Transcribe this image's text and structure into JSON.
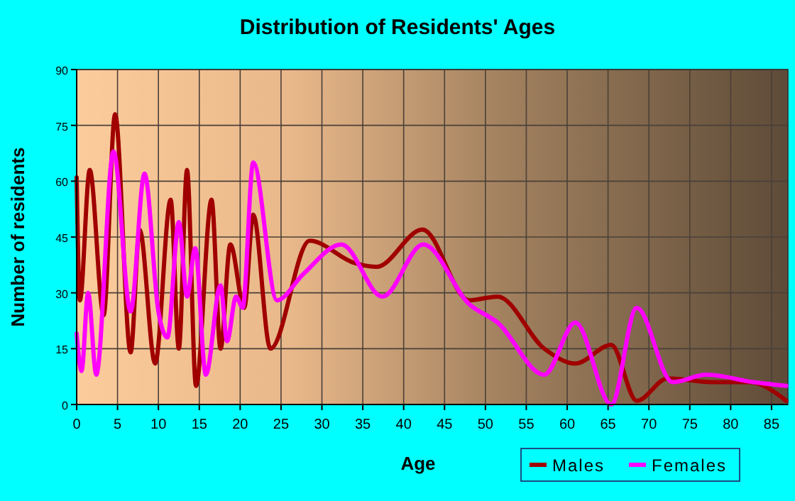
{
  "chart_data": {
    "type": "line",
    "title": "Distribution of Residents' Ages",
    "xlabel": "Age",
    "ylabel": "Number of residents",
    "xlim": [
      0,
      87
    ],
    "ylim": [
      0,
      90
    ],
    "xticks": [
      0,
      5,
      10,
      15,
      20,
      25,
      30,
      35,
      40,
      45,
      50,
      55,
      60,
      65,
      70,
      75,
      80,
      85
    ],
    "yticks": [
      0,
      15,
      30,
      45,
      60,
      75,
      90
    ],
    "grid": true,
    "legend": "bottom right",
    "line_style": "solid",
    "series": [
      {
        "name": "Males",
        "color": "#a00000",
        "x": [
          0,
          0.4,
          1.6,
          3.3,
          4.7,
          6.6,
          7.7,
          9.6,
          11.5,
          12.5,
          13.5,
          14.6,
          16.5,
          17.6,
          18.8,
          20.5,
          21.6,
          23.7,
          28.5,
          34,
          36.7,
          42.3,
          48,
          51.5,
          57.2,
          61,
          65.4,
          68.5,
          72.3,
          78,
          82.3,
          86.8
        ],
        "values": [
          61,
          28,
          63,
          24,
          78,
          14,
          47,
          11,
          55,
          15,
          63,
          5,
          55,
          15,
          43,
          26,
          51,
          15,
          44,
          38,
          37,
          47,
          28,
          29,
          15,
          11,
          16,
          1,
          7,
          6,
          6,
          1
        ]
      },
      {
        "name": "Females",
        "color": "#ff00ff",
        "x": [
          0,
          0.6,
          1.4,
          2.4,
          4.5,
          6.6,
          8.3,
          10,
          11.1,
          12.5,
          13.5,
          14.5,
          15.8,
          17.6,
          18.4,
          19.5,
          20.3,
          21.6,
          24.5,
          27.7,
          32.4,
          37.4,
          42.4,
          48,
          51.5,
          57.2,
          61,
          65.4,
          68.5,
          72.9,
          77,
          82.8,
          86.8
        ],
        "values": [
          19,
          9,
          30,
          8,
          68,
          25,
          62,
          25,
          18,
          49,
          29,
          42,
          8,
          32,
          17,
          29,
          26,
          65,
          28,
          35,
          43,
          29,
          43,
          27,
          22,
          8,
          22,
          0,
          26,
          6,
          8,
          6,
          5
        ]
      }
    ]
  }
}
